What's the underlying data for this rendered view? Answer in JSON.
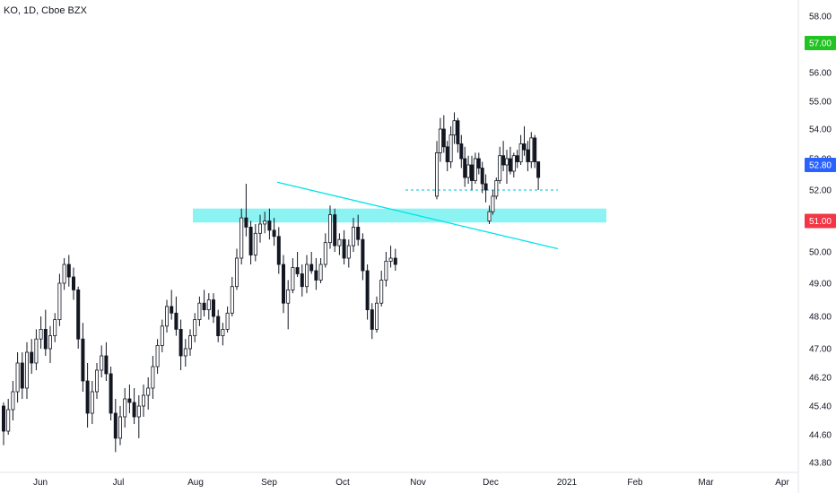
{
  "chart_data": {
    "type": "candlestick",
    "symbol_label": "KO, 1D, Cboe BZX",
    "y_axis": {
      "ticks": [
        "58.00",
        "56.00",
        "55.00",
        "54.00",
        "53.00",
        "52.00",
        "50.00",
        "49.00",
        "48.00",
        "47.00",
        "46.20",
        "45.40",
        "44.60",
        "43.80"
      ],
      "ylim": [
        43.8,
        58.0
      ],
      "position": "right"
    },
    "x_axis": {
      "labels": [
        "Jun",
        "Jul",
        "Aug",
        "Sep",
        "Oct",
        "Nov",
        "Dec",
        "2021",
        "Feb",
        "Mar",
        "Apr"
      ]
    },
    "price_badges": [
      {
        "text": "57.00",
        "value": 57.0,
        "color": "#22c322",
        "text_color": "#131722"
      },
      {
        "text": "52.80",
        "value": 52.8,
        "color": "#2962ff",
        "text_color": "#ffffff"
      },
      {
        "text": "51.00",
        "value": 51.0,
        "color": "#f23645",
        "text_color": "#ffffff"
      }
    ],
    "colors": {
      "up_body": "#ffffff",
      "down_body": "#131722",
      "wick": "#131722",
      "zone": "#7ff2f2",
      "trendline": "#00e5e5",
      "dashed": "#00bcd4"
    },
    "annotations": {
      "support_zone": {
        "low": 50.95,
        "high": 51.4
      },
      "trendline": {
        "from": {
          "x": "Sep 2",
          "y": 52.25
        },
        "to": {
          "x": "Nov 30",
          "y": 50.1
        }
      },
      "dashed_level": {
        "value": 52.0
      }
    },
    "candles": [
      [
        45.4,
        45.5,
        44.3,
        44.7
      ],
      [
        44.7,
        45.6,
        44.6,
        45.3
      ],
      [
        45.3,
        46.1,
        45.0,
        45.8
      ],
      [
        45.8,
        46.9,
        45.5,
        46.6
      ],
      [
        46.6,
        46.9,
        45.6,
        45.9
      ],
      [
        45.9,
        47.2,
        45.6,
        46.9
      ],
      [
        46.9,
        47.3,
        46.3,
        46.6
      ],
      [
        46.6,
        47.6,
        46.4,
        47.3
      ],
      [
        47.3,
        48.0,
        47.0,
        47.6
      ],
      [
        47.6,
        48.2,
        46.8,
        47.0
      ],
      [
        47.0,
        47.7,
        46.6,
        47.4
      ],
      [
        47.4,
        48.1,
        47.2,
        47.9
      ],
      [
        47.9,
        49.3,
        47.7,
        49.0
      ],
      [
        49.0,
        49.8,
        48.8,
        49.6
      ],
      [
        49.6,
        49.9,
        48.9,
        49.2
      ],
      [
        49.2,
        49.5,
        48.5,
        48.8
      ],
      [
        48.8,
        48.9,
        47.0,
        47.3
      ],
      [
        47.3,
        47.8,
        45.8,
        46.1
      ],
      [
        46.1,
        46.6,
        44.8,
        45.2
      ],
      [
        45.2,
        46.1,
        44.9,
        45.8
      ],
      [
        45.8,
        46.6,
        45.6,
        46.4
      ],
      [
        46.4,
        47.1,
        46.2,
        46.8
      ],
      [
        46.8,
        47.2,
        46.1,
        46.3
      ],
      [
        46.3,
        46.5,
        45.0,
        45.2
      ],
      [
        45.2,
        45.6,
        44.1,
        44.5
      ],
      [
        44.5,
        45.4,
        44.3,
        45.1
      ],
      [
        45.1,
        45.9,
        44.8,
        45.6
      ],
      [
        45.6,
        46.0,
        45.2,
        45.5
      ],
      [
        45.5,
        45.9,
        44.9,
        45.1
      ],
      [
        45.1,
        45.7,
        44.5,
        45.4
      ],
      [
        45.4,
        46.0,
        45.1,
        45.7
      ],
      [
        45.7,
        46.2,
        45.3,
        45.9
      ],
      [
        45.9,
        46.8,
        45.6,
        46.5
      ],
      [
        46.5,
        47.3,
        46.3,
        47.1
      ],
      [
        47.1,
        47.9,
        46.9,
        47.7
      ],
      [
        47.7,
        48.5,
        47.5,
        48.3
      ],
      [
        48.3,
        48.8,
        47.9,
        48.1
      ],
      [
        48.1,
        48.6,
        47.4,
        47.6
      ],
      [
        47.6,
        47.9,
        46.4,
        46.8
      ],
      [
        46.8,
        47.3,
        46.5,
        47.0
      ],
      [
        47.0,
        47.6,
        46.8,
        47.4
      ],
      [
        47.4,
        48.1,
        47.2,
        47.9
      ],
      [
        47.9,
        48.6,
        47.7,
        48.4
      ],
      [
        48.4,
        48.8,
        48.0,
        48.2
      ],
      [
        48.2,
        48.7,
        47.9,
        48.5
      ],
      [
        48.5,
        48.7,
        47.8,
        48.0
      ],
      [
        48.0,
        48.2,
        47.2,
        47.4
      ],
      [
        47.4,
        47.8,
        47.1,
        47.6
      ],
      [
        47.6,
        48.3,
        47.5,
        48.1
      ],
      [
        48.1,
        49.2,
        48.0,
        48.9
      ],
      [
        48.9,
        50.1,
        48.8,
        49.8
      ],
      [
        49.8,
        51.4,
        49.6,
        51.1
      ],
      [
        51.1,
        52.2,
        50.5,
        50.8
      ],
      [
        50.8,
        51.0,
        49.6,
        49.9
      ],
      [
        49.9,
        50.9,
        49.7,
        50.6
      ],
      [
        50.6,
        51.2,
        50.3,
        50.9
      ],
      [
        50.9,
        51.3,
        50.6,
        51.0
      ],
      [
        51.0,
        51.4,
        50.4,
        50.7
      ],
      [
        50.7,
        51.1,
        50.2,
        50.5
      ],
      [
        50.5,
        50.8,
        49.3,
        49.6
      ],
      [
        49.6,
        49.9,
        48.1,
        48.4
      ],
      [
        48.4,
        49.1,
        47.6,
        48.8
      ],
      [
        48.8,
        49.8,
        48.7,
        49.5
      ],
      [
        49.5,
        50.0,
        49.2,
        49.3
      ],
      [
        49.3,
        49.6,
        48.6,
        48.9
      ],
      [
        48.9,
        49.9,
        48.7,
        49.6
      ],
      [
        49.6,
        50.0,
        49.3,
        49.4
      ],
      [
        49.4,
        49.8,
        48.8,
        49.1
      ],
      [
        49.1,
        49.8,
        49.0,
        49.6
      ],
      [
        49.6,
        50.6,
        49.5,
        50.3
      ],
      [
        50.3,
        51.5,
        50.1,
        51.2
      ],
      [
        51.2,
        51.4,
        50.0,
        50.2
      ],
      [
        50.2,
        50.6,
        49.9,
        50.4
      ],
      [
        50.4,
        50.7,
        49.6,
        49.8
      ],
      [
        49.8,
        50.4,
        49.5,
        50.2
      ],
      [
        50.2,
        51.1,
        50.0,
        50.8
      ],
      [
        50.8,
        51.2,
        50.2,
        50.4
      ],
      [
        50.4,
        50.6,
        49.1,
        49.4
      ],
      [
        49.4,
        49.6,
        47.9,
        48.2
      ],
      [
        48.2,
        48.4,
        47.3,
        47.6
      ],
      [
        47.6,
        48.6,
        47.5,
        48.4
      ],
      [
        48.4,
        49.4,
        48.3,
        49.1
      ],
      [
        49.1,
        50.0,
        48.9,
        49.7
      ],
      [
        49.7,
        50.2,
        49.5,
        49.8
      ],
      [
        49.8,
        50.1,
        49.4,
        49.6
      ],
      [
        51.8,
        53.6,
        51.7,
        53.2
      ],
      [
        53.2,
        54.4,
        52.9,
        54.0
      ],
      [
        54.0,
        54.5,
        53.2,
        53.4
      ],
      [
        53.4,
        53.6,
        52.6,
        52.9
      ],
      [
        52.9,
        54.1,
        52.7,
        53.8
      ],
      [
        53.8,
        54.6,
        53.5,
        54.3
      ],
      [
        54.3,
        54.4,
        53.2,
        53.5
      ],
      [
        53.5,
        53.8,
        52.7,
        53.0
      ],
      [
        53.0,
        53.4,
        52.1,
        52.4
      ],
      [
        52.4,
        53.1,
        52.2,
        52.8
      ],
      [
        52.8,
        53.1,
        52.0,
        52.3
      ],
      [
        52.3,
        53.2,
        52.2,
        53.0
      ],
      [
        53.0,
        53.2,
        52.5,
        52.7
      ],
      [
        52.7,
        52.9,
        51.9,
        52.2
      ],
      [
        52.2,
        52.5,
        51.6,
        52.0
      ],
      [
        51.0,
        51.5,
        50.9,
        51.3
      ],
      [
        51.3,
        52.0,
        51.2,
        51.8
      ],
      [
        51.8,
        52.4,
        51.7,
        52.3
      ],
      [
        52.3,
        53.4,
        52.2,
        53.1
      ],
      [
        53.1,
        53.6,
        52.6,
        52.8
      ],
      [
        52.8,
        53.3,
        52.2,
        53.0
      ],
      [
        53.0,
        53.4,
        52.5,
        52.6
      ],
      [
        52.6,
        53.2,
        52.4,
        53.1
      ],
      [
        53.1,
        53.3,
        52.7,
        52.9
      ],
      [
        52.9,
        53.8,
        52.8,
        53.5
      ],
      [
        53.5,
        54.1,
        53.1,
        53.3
      ],
      [
        53.3,
        53.6,
        52.6,
        52.9
      ],
      [
        52.9,
        53.9,
        52.7,
        53.7
      ],
      [
        53.7,
        53.8,
        52.7,
        52.9
      ],
      [
        52.9,
        52.9,
        52.0,
        52.4
      ]
    ]
  }
}
